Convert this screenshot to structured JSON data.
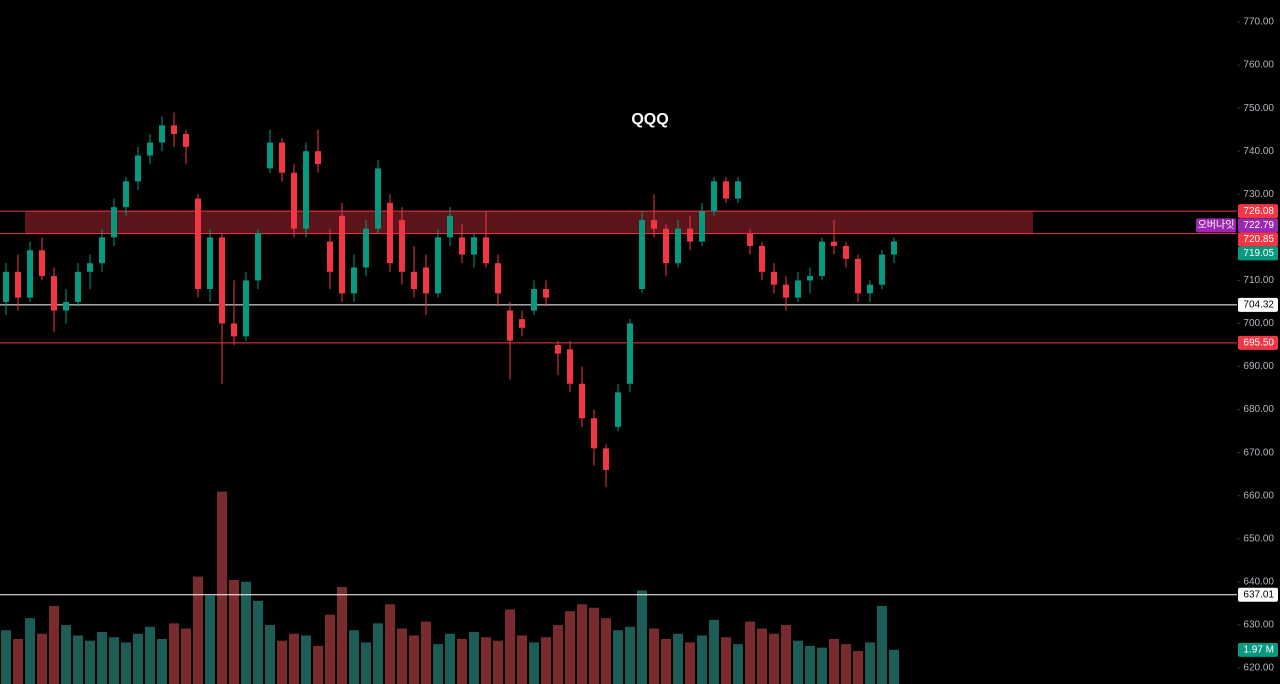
{
  "chart_data": {
    "type": "candlestick",
    "title": "QQQ",
    "colors": {
      "up": "#089981",
      "down": "#f23645",
      "volume_up": "#1d5d57",
      "volume_down": "#7a2b2e"
    },
    "open": [
      705,
      712,
      706,
      717,
      711,
      703,
      705,
      712,
      714,
      720,
      727,
      733,
      739,
      742,
      746,
      744,
      729,
      708,
      720,
      700,
      697,
      710,
      736,
      742,
      735,
      722,
      740,
      719,
      725,
      707,
      713,
      722,
      728,
      724,
      712,
      713,
      707,
      720,
      720,
      716,
      720,
      714,
      703,
      701,
      703,
      708,
      695,
      694,
      686,
      678,
      671,
      676,
      686,
      708,
      724,
      722,
      714,
      722,
      719,
      726,
      733,
      729,
      721,
      718,
      712,
      709,
      706,
      710,
      711,
      719,
      718,
      715,
      707,
      709,
      716
    ],
    "high": [
      714,
      716,
      719,
      720,
      713,
      708,
      714,
      716,
      722,
      729,
      734,
      741,
      744,
      748,
      749,
      745,
      730,
      722,
      721,
      710,
      712,
      722,
      745,
      743,
      737,
      742,
      745,
      722,
      728,
      716,
      724,
      738,
      730,
      727,
      718,
      716,
      722,
      727,
      723,
      721,
      726,
      716,
      705,
      703,
      710,
      710,
      696,
      696,
      690,
      680,
      672,
      686,
      701,
      726,
      730,
      723,
      724,
      725,
      728,
      734,
      734,
      734,
      722,
      719,
      714,
      711,
      712,
      713,
      720,
      724,
      719,
      716,
      710,
      717,
      720
    ],
    "low": [
      702,
      703,
      705,
      710,
      698,
      700,
      704,
      708,
      712,
      718,
      725,
      731,
      737,
      740,
      741,
      737,
      706,
      705,
      686,
      695,
      696,
      708,
      735,
      733,
      720,
      720,
      735,
      708,
      705,
      705,
      711,
      721,
      712,
      709,
      706,
      702,
      706,
      718,
      714,
      713,
      713,
      704,
      687,
      697,
      702,
      704,
      688,
      684,
      676,
      667,
      662,
      675,
      684,
      707,
      720,
      711,
      713,
      717,
      718,
      725,
      728,
      728,
      716,
      710,
      707,
      703,
      705,
      707,
      710,
      716,
      713,
      705,
      705,
      708,
      714
    ],
    "close": [
      712,
      706,
      717,
      711,
      703,
      705,
      712,
      714,
      720,
      727,
      733,
      739,
      742,
      746,
      744,
      741,
      708,
      720,
      700,
      697,
      710,
      721,
      742,
      735,
      722,
      740,
      737,
      712,
      707,
      713,
      722,
      736,
      714,
      712,
      708,
      707,
      720,
      725,
      716,
      720,
      714,
      707,
      696,
      699,
      708,
      706,
      693,
      686,
      678,
      671,
      666,
      684,
      700,
      724,
      722,
      714,
      722,
      719,
      726,
      733,
      729,
      733,
      718,
      712,
      709,
      706,
      710,
      711,
      719,
      718,
      715,
      707,
      709,
      716,
      719.05
    ],
    "volume": [
      3.1,
      2.6,
      3.8,
      2.9,
      4.5,
      3.4,
      2.8,
      2.5,
      3.0,
      2.7,
      2.4,
      2.9,
      3.3,
      2.6,
      3.5,
      3.2,
      6.2,
      5.1,
      11.1,
      6.0,
      5.9,
      4.8,
      3.4,
      2.5,
      2.9,
      2.8,
      2.2,
      4.0,
      5.6,
      3.1,
      2.4,
      3.5,
      4.6,
      3.2,
      2.8,
      3.6,
      2.3,
      2.9,
      2.6,
      3.0,
      2.7,
      2.5,
      4.3,
      2.8,
      2.4,
      2.7,
      3.4,
      4.2,
      4.6,
      4.4,
      3.8,
      3.1,
      3.3,
      5.4,
      3.2,
      2.6,
      2.9,
      2.4,
      2.8,
      3.7,
      2.7,
      2.3,
      3.6,
      3.2,
      2.9,
      3.4,
      2.5,
      2.2,
      2.1,
      2.6,
      2.3,
      1.9,
      2.4,
      4.5,
      1.97
    ],
    "volume_last_label": "1.97 M",
    "volume_ylim": [
      0,
      12
    ],
    "ylim": [
      620,
      770
    ],
    "yticks": [
      {
        "value": 620,
        "label": "620.00"
      },
      {
        "value": 630,
        "label": "630.00"
      },
      {
        "value": 640,
        "label": "640.00"
      },
      {
        "value": 650,
        "label": "650.00"
      },
      {
        "value": 660,
        "label": "660.00"
      },
      {
        "value": 670,
        "label": "670.00"
      },
      {
        "value": 680,
        "label": "680.00"
      },
      {
        "value": 690,
        "label": "690.00"
      },
      {
        "value": 700,
        "label": "700.00"
      },
      {
        "value": 710,
        "label": "710.00"
      },
      {
        "value": 720,
        "label": "720.00"
      },
      {
        "value": 730,
        "label": "730.00"
      },
      {
        "value": 740,
        "label": "740.00"
      },
      {
        "value": 750,
        "label": "750.00"
      },
      {
        "value": 760,
        "label": "760.00"
      },
      {
        "value": 770,
        "label": "770.00"
      }
    ],
    "zone": {
      "top": 726.08,
      "bottom": 720.85,
      "color": "#f23645"
    },
    "overnight": {
      "name": "오버나잇",
      "value": 722.79,
      "color": "#9c27b0"
    },
    "levels": [
      {
        "value": 704.32,
        "label": "704.32",
        "color": "#ffffff"
      },
      {
        "value": 695.5,
        "label": "695.50",
        "color": "#f23645"
      },
      {
        "value": 637.01,
        "label": "637.01",
        "color": "#ffffff"
      }
    ]
  }
}
